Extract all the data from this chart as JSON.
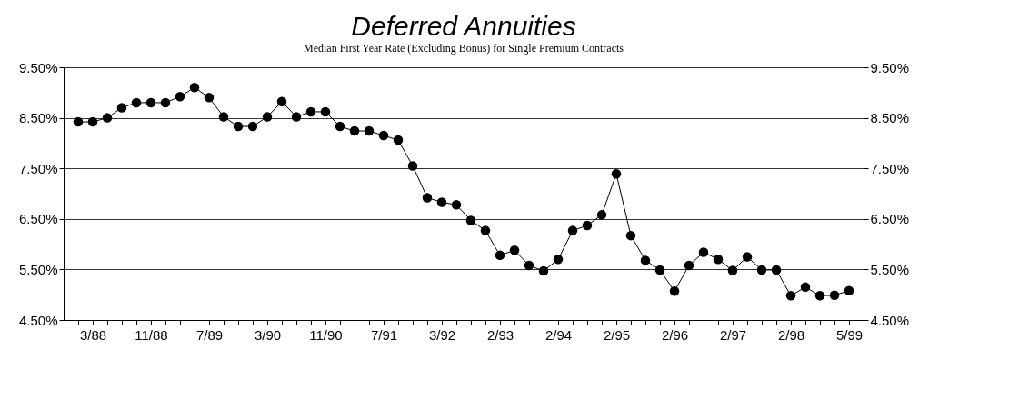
{
  "chart_data": {
    "type": "line",
    "title": "Deferred Annuities",
    "subtitle": "Median First Year Rate (Excluding Bonus) for Single Premium Contracts",
    "categories": [
      null,
      "3/88",
      null,
      null,
      null,
      "11/88",
      null,
      null,
      null,
      "7/89",
      null,
      null,
      null,
      "3/90",
      null,
      null,
      null,
      "11/90",
      null,
      null,
      null,
      "7/91",
      null,
      null,
      null,
      "3/92",
      null,
      null,
      null,
      "2/93",
      null,
      null,
      null,
      "2/94",
      null,
      null,
      null,
      "2/95",
      null,
      null,
      null,
      "2/96",
      null,
      null,
      null,
      "2/97",
      null,
      null,
      null,
      "2/98",
      null,
      null,
      null,
      "5/99"
    ],
    "series": [
      {
        "color": "#000000",
        "values": [
          8.42,
          8.42,
          8.5,
          8.7,
          8.8,
          8.8,
          8.8,
          8.92,
          9.1,
          8.9,
          8.52,
          8.33,
          8.33,
          8.52,
          8.82,
          8.52,
          8.62,
          8.62,
          8.33,
          8.24,
          8.24,
          8.15,
          8.06,
          7.55,
          6.92,
          6.83,
          6.78,
          6.47,
          6.27,
          5.78,
          5.88,
          5.58,
          5.47,
          5.7,
          6.27,
          6.37,
          6.58,
          7.39,
          6.17,
          5.68,
          5.49,
          5.07,
          5.58,
          5.84,
          5.7,
          5.48,
          5.75,
          5.49,
          5.49,
          4.98,
          5.15,
          4.98,
          4.99,
          5.08
        ]
      }
    ],
    "ylim": [
      4.5,
      9.5
    ],
    "yticks": [
      {
        "value": 4.5,
        "label": "4.50%"
      },
      {
        "value": 5.5,
        "label": "5.50%"
      },
      {
        "value": 6.5,
        "label": "6.50%"
      },
      {
        "value": 7.5,
        "label": "7.50%"
      },
      {
        "value": 8.5,
        "label": "8.50%"
      },
      {
        "value": 9.5,
        "label": "9.50%"
      }
    ],
    "y2lim": [
      4.5,
      9.5
    ],
    "y2ticks": [
      {
        "value": 4.5,
        "label": "4.50%"
      },
      {
        "value": 5.5,
        "label": "5.50%"
      },
      {
        "value": 6.5,
        "label": "6.50%"
      },
      {
        "value": 7.5,
        "label": "7.50%"
      },
      {
        "value": 8.5,
        "label": "8.50%"
      },
      {
        "value": 9.5,
        "label": "9.50%"
      }
    ],
    "grid": "y",
    "marker": "circle",
    "line_style": "solid"
  }
}
